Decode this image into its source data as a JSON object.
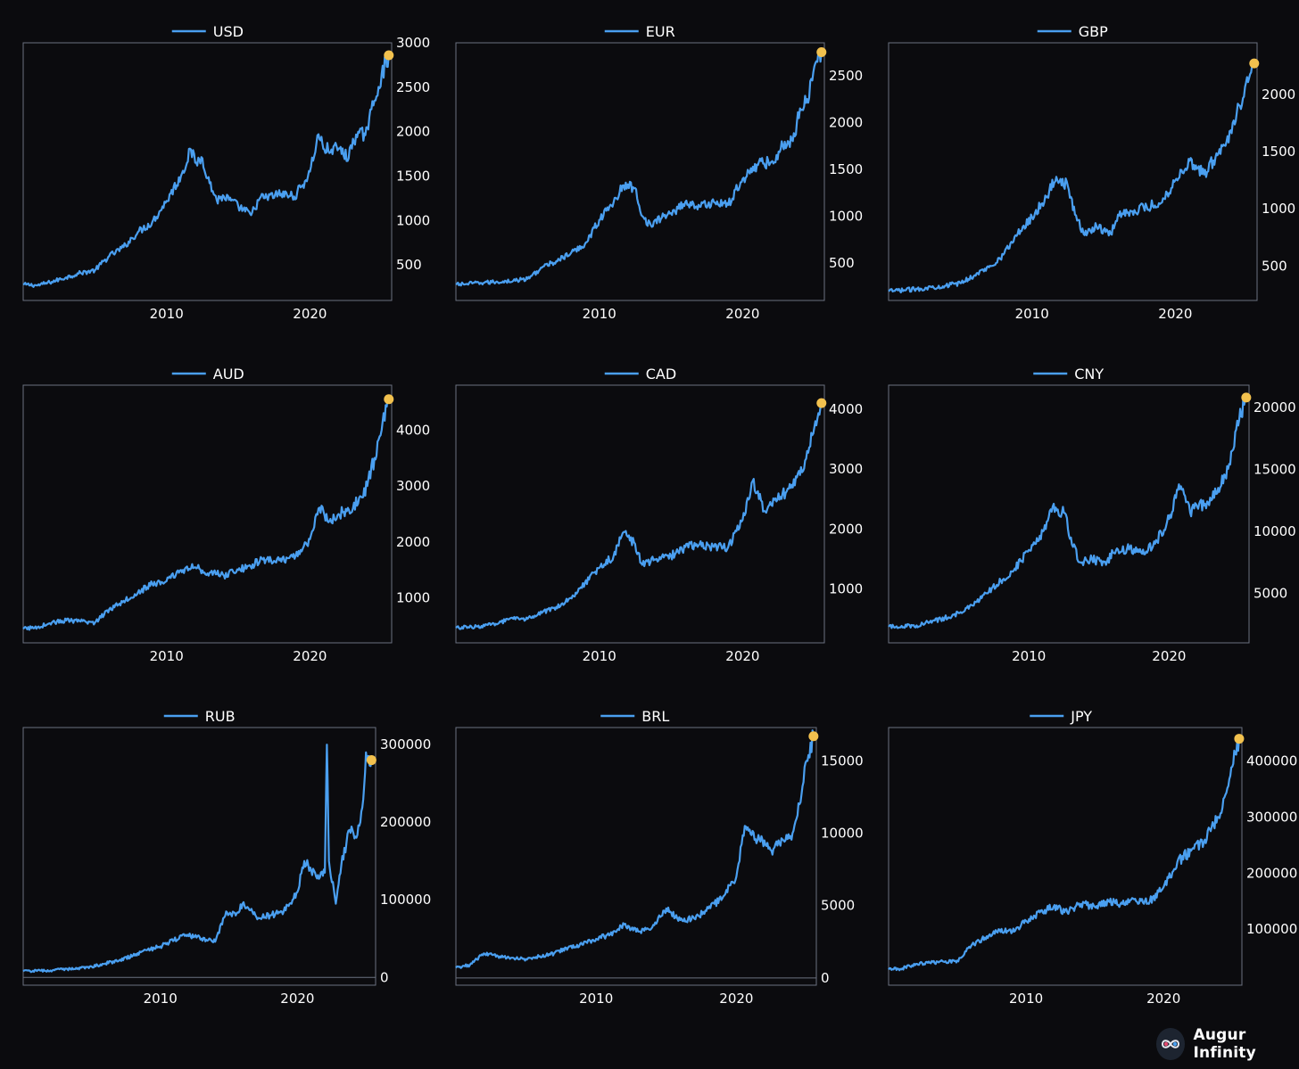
{
  "brand": {
    "name": "Augur Infinity",
    "logo_icon": "infinity-icon"
  },
  "colors": {
    "background": "#0b0b0e",
    "line": "#4a9ff0",
    "marker": "#f2c14e",
    "frame": "#6b7280",
    "text": "#ffffff"
  },
  "chart_data": [
    {
      "type": "line",
      "title": "",
      "legend": "USD",
      "xlim": [
        2000,
        2025.7
      ],
      "ylim": [
        100,
        3000
      ],
      "xticks": [
        2010,
        2020
      ],
      "yticks": [
        500,
        1000,
        1500,
        2000,
        2500,
        3000
      ],
      "x": [
        2000,
        2001,
        2002,
        2003,
        2004,
        2005,
        2006,
        2007,
        2008,
        2009,
        2010,
        2011,
        2011.7,
        2012,
        2012.5,
        2013,
        2013.5,
        2014,
        2015,
        2015.9,
        2016.5,
        2017,
        2018,
        2018.9,
        2019.5,
        2020,
        2020.6,
        2021,
        2021.5,
        2022,
        2022.7,
        2023,
        2023.8,
        2024,
        2024.5,
        2025,
        2025.5
      ],
      "y": [
        280,
        270,
        310,
        360,
        410,
        440,
        600,
        700,
        870,
        980,
        1220,
        1500,
        1800,
        1650,
        1700,
        1420,
        1230,
        1270,
        1160,
        1060,
        1250,
        1260,
        1300,
        1270,
        1400,
        1550,
        1970,
        1800,
        1800,
        1810,
        1700,
        1920,
        1980,
        2050,
        2350,
        2650,
        2860
      ],
      "last": {
        "x": 2025.5,
        "y": 2860
      }
    },
    {
      "type": "line",
      "title": "",
      "legend": "EUR",
      "xlim": [
        2000,
        2025.7
      ],
      "ylim": [
        100,
        2850
      ],
      "xticks": [
        2010,
        2020
      ],
      "yticks": [
        500,
        1000,
        1500,
        2000,
        2500
      ],
      "x": [
        2000,
        2002,
        2004,
        2005,
        2006,
        2007,
        2008,
        2009,
        2010,
        2011,
        2011.7,
        2012.5,
        2013,
        2013.6,
        2014.5,
        2015.5,
        2016,
        2017,
        2018,
        2019,
        2020,
        2021,
        2022,
        2022.8,
        2023.5,
        2024,
        2024.5,
        2025,
        2025.5
      ],
      "y": [
        270,
        290,
        310,
        330,
        450,
        520,
        600,
        700,
        960,
        1150,
        1330,
        1300,
        1000,
        900,
        1000,
        1080,
        1150,
        1100,
        1150,
        1120,
        1400,
        1550,
        1580,
        1750,
        1800,
        2150,
        2250,
        2600,
        2750
      ],
      "last": {
        "x": 2025.5,
        "y": 2750
      }
    },
    {
      "type": "line",
      "title": "",
      "legend": "GBP",
      "xlim": [
        2000,
        2025.7
      ],
      "ylim": [
        200,
        2450
      ],
      "xticks": [
        2010,
        2020
      ],
      "yticks": [
        500,
        1000,
        1500,
        2000
      ],
      "x": [
        2000,
        2002,
        2004,
        2005,
        2006,
        2007,
        2008,
        2009,
        2010,
        2011,
        2011.7,
        2012.5,
        2013,
        2013.6,
        2014.5,
        2015.5,
        2016,
        2017,
        2018,
        2019,
        2020,
        2021,
        2022,
        2022.8,
        2023.5,
        2024,
        2024.5,
        2025,
        2025.5
      ],
      "y": [
        280,
        300,
        330,
        350,
        420,
        490,
        600,
        780,
        930,
        1100,
        1280,
        1200,
        950,
        780,
        850,
        780,
        950,
        980,
        1020,
        1050,
        1250,
        1420,
        1300,
        1450,
        1550,
        1750,
        1900,
        2150,
        2270
      ],
      "last": {
        "x": 2025.5,
        "y": 2270
      }
    },
    {
      "type": "line",
      "title": "",
      "legend": "AUD",
      "xlim": [
        2000,
        2025.7
      ],
      "ylim": [
        200,
        4800
      ],
      "xticks": [
        2010,
        2020
      ],
      "yticks": [
        1000,
        2000,
        3000,
        4000
      ],
      "x": [
        2000,
        2001,
        2002,
        2003,
        2004,
        2005,
        2006,
        2007,
        2008,
        2009,
        2010,
        2011,
        2012,
        2013,
        2014,
        2015,
        2016,
        2017,
        2018,
        2019,
        2020,
        2020.6,
        2021.5,
        2022,
        2023,
        2024,
        2024.5,
        2025,
        2025.5
      ],
      "y": [
        450,
        480,
        560,
        600,
        580,
        560,
        800,
        950,
        1100,
        1250,
        1300,
        1500,
        1550,
        1450,
        1400,
        1500,
        1600,
        1700,
        1650,
        1750,
        2050,
        2600,
        2350,
        2500,
        2600,
        3000,
        3500,
        4000,
        4550
      ],
      "last": {
        "x": 2025.5,
        "y": 4550
      }
    },
    {
      "type": "line",
      "title": "",
      "legend": "CAD",
      "xlim": [
        2000,
        2025.7
      ],
      "ylim": [
        100,
        4400
      ],
      "xticks": [
        2010,
        2020
      ],
      "yticks": [
        1000,
        2000,
        3000,
        4000
      ],
      "x": [
        2000,
        2002,
        2004,
        2005,
        2006,
        2007,
        2008,
        2009,
        2010,
        2011,
        2011.7,
        2012.5,
        2013,
        2014,
        2015,
        2016,
        2017,
        2018,
        2019,
        2020,
        2020.7,
        2021.5,
        2022,
        2023,
        2024,
        2024.5,
        2025,
        2025.5
      ],
      "y": [
        350,
        380,
        500,
        500,
        600,
        700,
        850,
        1100,
        1350,
        1550,
        1950,
        1750,
        1400,
        1500,
        1550,
        1700,
        1750,
        1700,
        1700,
        2150,
        2800,
        2300,
        2400,
        2600,
        2900,
        3300,
        3700,
        4100
      ],
      "last": {
        "x": 2025.5,
        "y": 4100
      }
    },
    {
      "type": "line",
      "title": "",
      "legend": "CNY",
      "xlim": [
        2000,
        2025.7
      ],
      "ylim": [
        1000,
        21800
      ],
      "xticks": [
        2010,
        2020
      ],
      "yticks": [
        5000,
        10000,
        15000,
        20000
      ],
      "x": [
        2000,
        2002,
        2004,
        2005,
        2006,
        2007,
        2008,
        2009,
        2010,
        2011,
        2011.7,
        2012.5,
        2013,
        2013.6,
        2014.5,
        2015.5,
        2016,
        2017,
        2018,
        2019,
        2020,
        2020.7,
        2021.5,
        2022,
        2023,
        2024,
        2024.5,
        2025,
        2025.5
      ],
      "y": [
        2300,
        2400,
        3000,
        3400,
        4000,
        5000,
        6000,
        7000,
        8500,
        10000,
        12000,
        11500,
        9500,
        7500,
        7800,
        7300,
        8300,
        8600,
        8300,
        9000,
        11000,
        13800,
        11500,
        12000,
        12500,
        14500,
        16500,
        19000,
        20800
      ],
      "last": {
        "x": 2025.5,
        "y": 20800
      }
    },
    {
      "type": "line",
      "title": "",
      "legend": "RUB",
      "xlim": [
        2000,
        2025.7
      ],
      "ylim": [
        -10000,
        322000
      ],
      "xticks": [
        2010,
        2020
      ],
      "yticks": [
        0,
        100000,
        200000,
        300000
      ],
      "x": [
        2000,
        2002,
        2004,
        2005,
        2006,
        2007,
        2008,
        2009,
        2010,
        2011,
        2012,
        2013,
        2014,
        2014.8,
        2015.5,
        2016,
        2017,
        2018,
        2019,
        2020,
        2020.5,
        2021,
        2021.5,
        2022,
        2022.15,
        2022.3,
        2022.8,
        2023.2,
        2023.8,
        2024.3,
        2024.8,
        2025,
        2025.4
      ],
      "y": [
        8000,
        9000,
        12000,
        14000,
        18000,
        22000,
        28000,
        35000,
        40000,
        48000,
        55000,
        50000,
        46000,
        85000,
        80000,
        95000,
        78000,
        80000,
        85000,
        110000,
        150000,
        138000,
        132000,
        135000,
        300000,
        150000,
        95000,
        145000,
        190000,
        180000,
        230000,
        290000,
        280000
      ],
      "last": {
        "x": 2025.4,
        "y": 280000
      }
    },
    {
      "type": "line",
      "title": "",
      "legend": "BRL",
      "xlim": [
        2000,
        2025.7
      ],
      "ylim": [
        -500,
        17300
      ],
      "xticks": [
        2010,
        2020
      ],
      "yticks": [
        0,
        5000,
        10000,
        15000
      ],
      "x": [
        2000,
        2001,
        2002,
        2003,
        2004,
        2005,
        2006,
        2007,
        2008,
        2009,
        2010,
        2011,
        2012,
        2013,
        2014,
        2015,
        2016,
        2017,
        2018,
        2019,
        2020,
        2020.6,
        2021.5,
        2022,
        2022.5,
        2023,
        2023.5,
        2024,
        2024.5,
        2025,
        2025.5
      ],
      "y": [
        700,
        900,
        1700,
        1500,
        1400,
        1300,
        1500,
        1700,
        2100,
        2300,
        2700,
        3000,
        3700,
        3200,
        3500,
        4800,
        4000,
        4100,
        4800,
        5500,
        7000,
        10500,
        9500,
        9500,
        8800,
        9500,
        9500,
        10000,
        12000,
        15000,
        16700
      ],
      "last": {
        "x": 2025.5,
        "y": 16700
      }
    },
    {
      "type": "line",
      "title": "",
      "legend": "JPY",
      "xlim": [
        2000,
        2025.7
      ],
      "ylim": [
        0,
        460000
      ],
      "xticks": [
        2010,
        2020
      ],
      "yticks": [
        100000,
        200000,
        300000,
        400000
      ],
      "x": [
        2000,
        2001,
        2002,
        2003,
        2004,
        2005,
        2006,
        2007,
        2008,
        2009,
        2010,
        2011,
        2012,
        2013,
        2014,
        2015,
        2016,
        2017,
        2018,
        2019,
        2020,
        2021,
        2022,
        2023,
        2024,
        2024.5,
        2025,
        2025.5
      ],
      "y": [
        28000,
        30000,
        38000,
        40000,
        42000,
        44000,
        70000,
        85000,
        100000,
        95000,
        115000,
        130000,
        140000,
        130000,
        145000,
        140000,
        150000,
        145000,
        150000,
        150000,
        175000,
        220000,
        240000,
        260000,
        300000,
        340000,
        390000,
        440000
      ],
      "last": {
        "x": 2025.5,
        "y": 440000
      }
    }
  ]
}
